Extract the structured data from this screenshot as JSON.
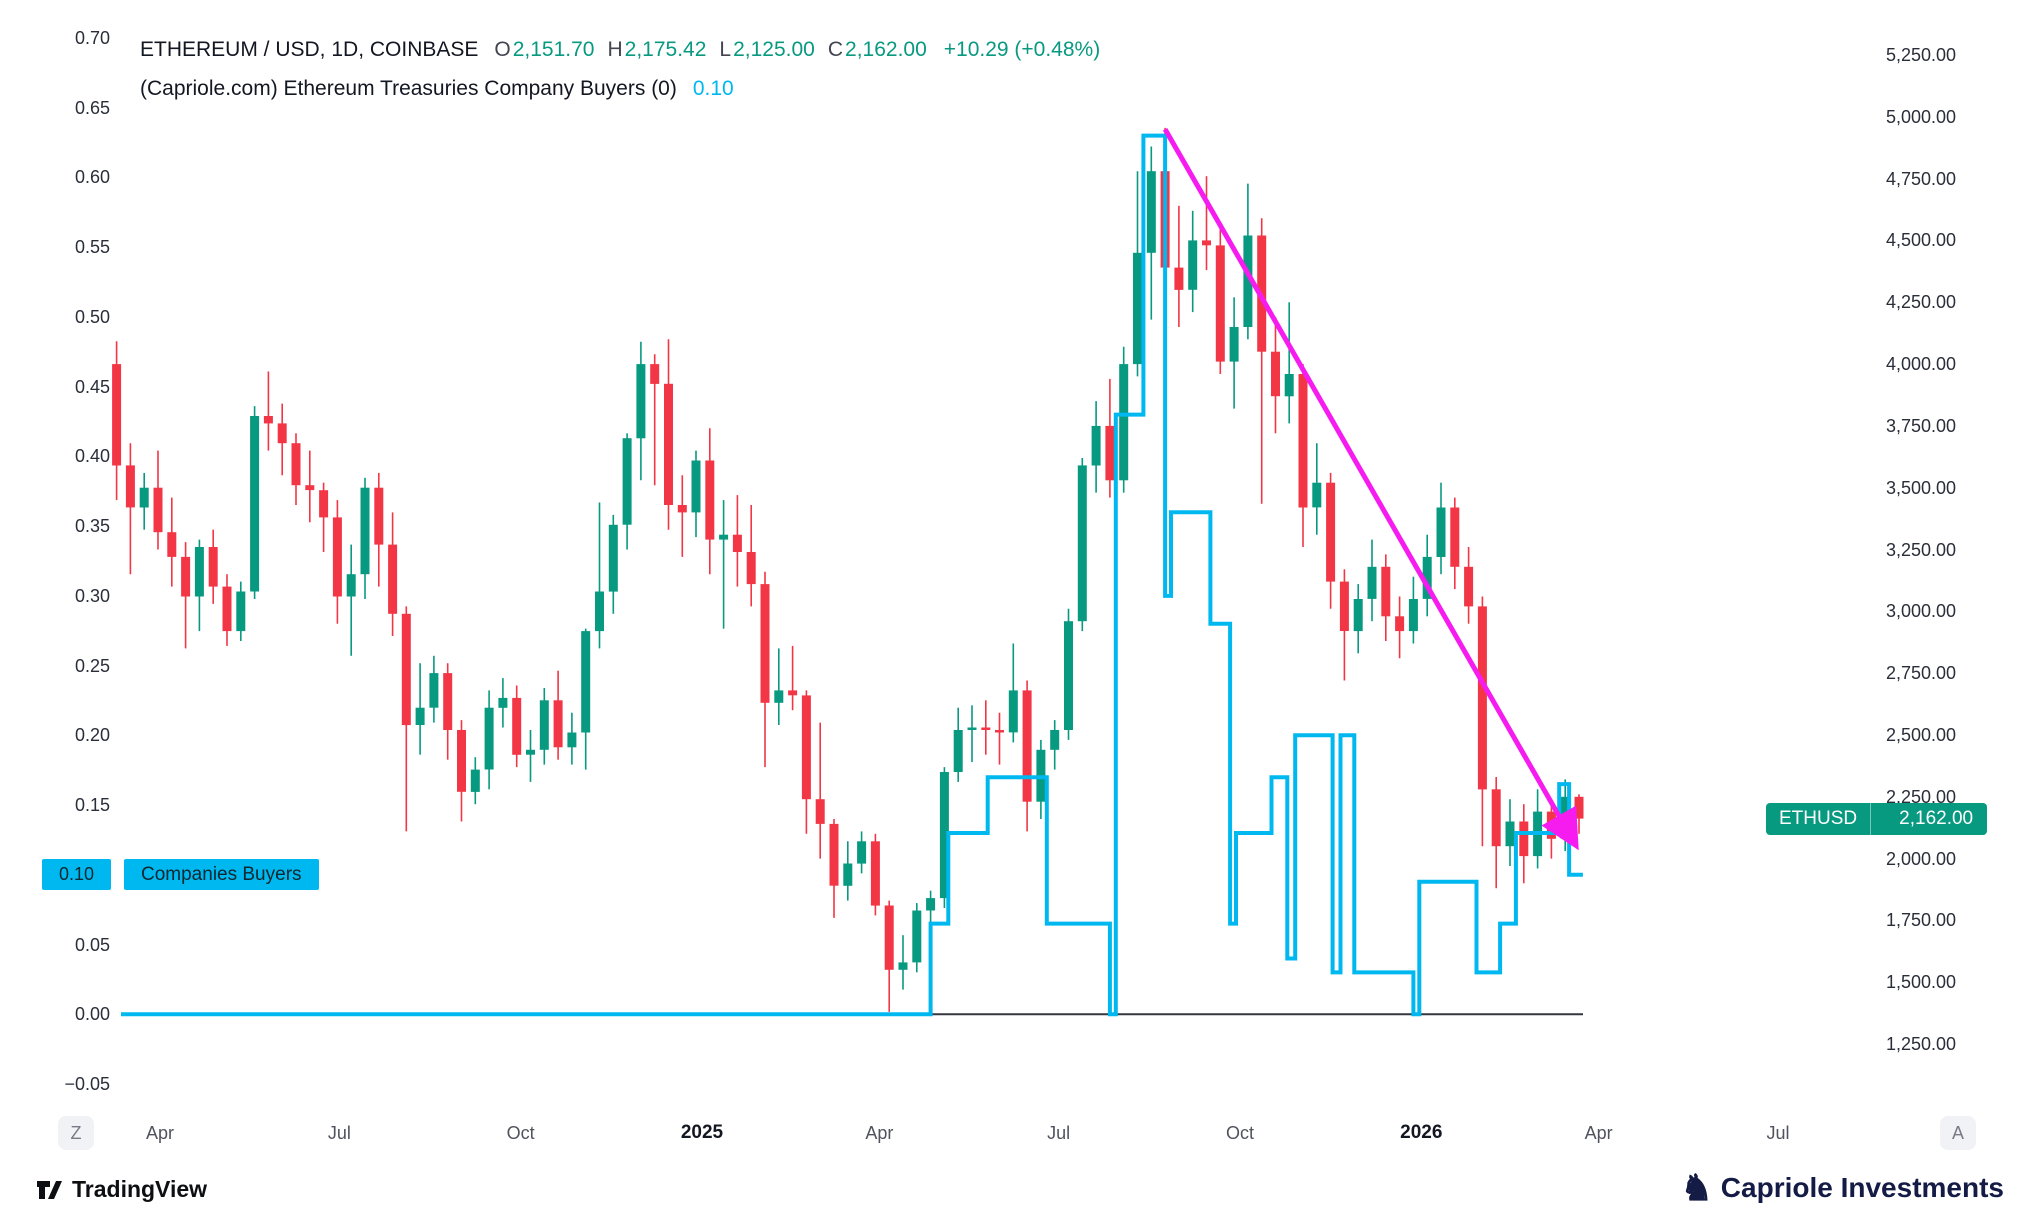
{
  "colors": {
    "up": "#089981",
    "down": "#F23645",
    "indicator": "#00B8F0",
    "trend_arrow": "#F61CF0",
    "price_label_bg": "#089981",
    "zero_line": "#32363E"
  },
  "legend": {
    "line1": {
      "title": "ETHEREUM / USD, 1D, COINBASE",
      "o_label": "O",
      "o_value": "2,151.70",
      "h_label": "H",
      "h_value": "2,175.42",
      "l_label": "L",
      "l_value": "2,125.00",
      "c_label": "C",
      "c_value": "2,162.00",
      "change": "+10.29 (+0.48%)"
    },
    "line2": {
      "title": "(Capriole.com) Ethereum Treasuries Company Buyers (0)",
      "value": "0.10"
    }
  },
  "axes": {
    "left_ticks": [
      "0.70",
      "0.65",
      "0.60",
      "0.55",
      "0.50",
      "0.45",
      "0.40",
      "0.35",
      "0.30",
      "0.25",
      "0.20",
      "0.15",
      "0.10",
      "0.05",
      "0.00",
      "−0.05"
    ],
    "right_ticks": [
      "5,250.00",
      "5,000.00",
      "4,750.00",
      "4,500.00",
      "4,250.00",
      "4,000.00",
      "3,750.00",
      "3,500.00",
      "3,250.00",
      "3,000.00",
      "2,750.00",
      "2,500.00",
      "2,250.00",
      "2,000.00",
      "1,750.00",
      "1,500.00",
      "1,250.00"
    ],
    "bottom_ticks": [
      {
        "label": "Apr",
        "date": "2024-04-01",
        "bold": false
      },
      {
        "label": "Jul",
        "date": "2024-07-01",
        "bold": false
      },
      {
        "label": "Oct",
        "date": "2024-10-01",
        "bold": false
      },
      {
        "label": "2025",
        "date": "2025-01-01",
        "bold": true
      },
      {
        "label": "Apr",
        "date": "2025-04-01",
        "bold": false
      },
      {
        "label": "Jul",
        "date": "2025-07-01",
        "bold": false
      },
      {
        "label": "Oct",
        "date": "2025-10-01",
        "bold": false
      },
      {
        "label": "2026",
        "date": "2026-01-01",
        "bold": true
      },
      {
        "label": "Apr",
        "date": "2026-04-01",
        "bold": false
      },
      {
        "label": "Jul",
        "date": "2026-07-01",
        "bold": false
      }
    ],
    "left_scale_button": "Z",
    "right_scale_button": "A"
  },
  "tags": {
    "indicator_axis_value": "0.10",
    "indicator_name": "Companies Buyers",
    "price_symbol": "ETHUSD",
    "price_value": "2,162.00"
  },
  "footer": {
    "tradingview_label": "TradingView",
    "brand_label": "Capriole Investments"
  },
  "chart_data": {
    "type": "candlestick",
    "title": "ETHEREUM / USD, 1D, COINBASE with Ethereum Treasuries Company Buyers overlay",
    "legend_ohlc": {
      "open": 2151.7,
      "high": 2175.42,
      "low": 2125.0,
      "close": 2162.0,
      "change": 10.29,
      "change_pct": 0.48
    },
    "axes": {
      "left": {
        "min": -0.05,
        "max": 0.7,
        "tick_step": 0.05,
        "series": "Company Buyers"
      },
      "right": {
        "min": 1250,
        "max": 5250,
        "tick_step": 250,
        "series": "ETHUSD"
      },
      "x": {
        "start": "2024-03-10",
        "end": "2026-07-31",
        "tick_dates": [
          "2024-04-01",
          "2024-07-01",
          "2024-10-01",
          "2025-01-01",
          "2025-04-01",
          "2025-07-01",
          "2025-10-01",
          "2026-01-01",
          "2026-04-01",
          "2026-07-01"
        ]
      }
    },
    "series": [
      {
        "name": "ETHUSD",
        "type": "candlestick",
        "axis": "right",
        "start_date": "2024-03-10",
        "interval_days": 7,
        "last_close": 2162.0,
        "candles": [
          [
            4000,
            4092,
            3450,
            3590
          ],
          [
            3590,
            3680,
            3150,
            3420
          ],
          [
            3420,
            3560,
            3330,
            3500
          ],
          [
            3500,
            3650,
            3250,
            3320
          ],
          [
            3320,
            3460,
            3100,
            3220
          ],
          [
            3220,
            3280,
            2850,
            3060
          ],
          [
            3060,
            3290,
            2920,
            3260
          ],
          [
            3260,
            3330,
            3030,
            3100
          ],
          [
            3100,
            3150,
            2860,
            2920
          ],
          [
            2920,
            3120,
            2880,
            3080
          ],
          [
            3080,
            3830,
            3050,
            3790
          ],
          [
            3790,
            3970,
            3650,
            3760
          ],
          [
            3760,
            3840,
            3550,
            3680
          ],
          [
            3680,
            3720,
            3430,
            3510
          ],
          [
            3510,
            3650,
            3360,
            3490
          ],
          [
            3490,
            3520,
            3240,
            3380
          ],
          [
            3380,
            3450,
            2950,
            3060
          ],
          [
            3060,
            3270,
            2820,
            3150
          ],
          [
            3150,
            3540,
            3050,
            3500
          ],
          [
            3500,
            3560,
            3100,
            3270
          ],
          [
            3270,
            3400,
            2900,
            2990
          ],
          [
            2990,
            3020,
            2110,
            2540
          ],
          [
            2540,
            2790,
            2420,
            2610
          ],
          [
            2610,
            2820,
            2550,
            2750
          ],
          [
            2750,
            2790,
            2400,
            2520
          ],
          [
            2520,
            2560,
            2150,
            2270
          ],
          [
            2270,
            2410,
            2220,
            2360
          ],
          [
            2360,
            2680,
            2280,
            2610
          ],
          [
            2610,
            2730,
            2530,
            2650
          ],
          [
            2650,
            2700,
            2370,
            2420
          ],
          [
            2420,
            2520,
            2310,
            2440
          ],
          [
            2440,
            2690,
            2380,
            2640
          ],
          [
            2640,
            2760,
            2400,
            2450
          ],
          [
            2450,
            2590,
            2380,
            2510
          ],
          [
            2510,
            2930,
            2360,
            2920
          ],
          [
            2920,
            3440,
            2850,
            3080
          ],
          [
            3080,
            3390,
            2990,
            3350
          ],
          [
            3350,
            3720,
            3250,
            3700
          ],
          [
            3700,
            4090,
            3530,
            4000
          ],
          [
            4000,
            4040,
            3510,
            3920
          ],
          [
            3920,
            4100,
            3330,
            3430
          ],
          [
            3430,
            3550,
            3220,
            3400
          ],
          [
            3400,
            3650,
            3300,
            3610
          ],
          [
            3610,
            3740,
            3150,
            3290
          ],
          [
            3290,
            3450,
            2930,
            3310
          ],
          [
            3310,
            3470,
            3100,
            3240
          ],
          [
            3240,
            3430,
            3020,
            3110
          ],
          [
            3110,
            3160,
            2370,
            2630
          ],
          [
            2630,
            2850,
            2540,
            2680
          ],
          [
            2680,
            2860,
            2600,
            2660
          ],
          [
            2660,
            2680,
            2100,
            2240
          ],
          [
            2240,
            2550,
            2000,
            2140
          ],
          [
            2140,
            2160,
            1760,
            1890
          ],
          [
            1890,
            2070,
            1830,
            1980
          ],
          [
            1980,
            2110,
            1940,
            2070
          ],
          [
            2070,
            2100,
            1770,
            1810
          ],
          [
            1810,
            1830,
            1380,
            1550
          ],
          [
            1550,
            1690,
            1470,
            1580
          ],
          [
            1580,
            1820,
            1540,
            1790
          ],
          [
            1790,
            1870,
            1720,
            1840
          ],
          [
            1840,
            2370,
            1800,
            2350
          ],
          [
            2350,
            2610,
            2310,
            2520
          ],
          [
            2520,
            2620,
            2390,
            2530
          ],
          [
            2530,
            2640,
            2420,
            2520
          ],
          [
            2520,
            2590,
            2380,
            2510
          ],
          [
            2510,
            2870,
            2470,
            2680
          ],
          [
            2680,
            2720,
            2110,
            2230
          ],
          [
            2230,
            2480,
            2160,
            2440
          ],
          [
            2440,
            2560,
            2360,
            2520
          ],
          [
            2520,
            3010,
            2480,
            2960
          ],
          [
            2960,
            3620,
            2920,
            3590
          ],
          [
            3590,
            3850,
            3480,
            3750
          ],
          [
            3750,
            3940,
            3460,
            3530
          ],
          [
            3530,
            4070,
            3480,
            4000
          ],
          [
            4000,
            4780,
            3950,
            4450
          ],
          [
            4450,
            4880,
            4180,
            4780
          ],
          [
            4780,
            4955,
            4220,
            4390
          ],
          [
            4390,
            4640,
            4150,
            4300
          ],
          [
            4300,
            4620,
            4210,
            4500
          ],
          [
            4500,
            4760,
            4380,
            4480
          ],
          [
            4480,
            4560,
            3960,
            4010
          ],
          [
            4010,
            4270,
            3820,
            4150
          ],
          [
            4150,
            4730,
            4100,
            4520
          ],
          [
            4520,
            4590,
            3435,
            4050
          ],
          [
            4050,
            4190,
            3720,
            3870
          ],
          [
            3870,
            4250,
            3760,
            3960
          ],
          [
            3960,
            4000,
            3260,
            3420
          ],
          [
            3420,
            3680,
            3310,
            3520
          ],
          [
            3520,
            3560,
            3010,
            3120
          ],
          [
            3120,
            3170,
            2720,
            2920
          ],
          [
            2920,
            3110,
            2830,
            3050
          ],
          [
            3050,
            3290,
            2960,
            3180
          ],
          [
            3180,
            3230,
            2880,
            2980
          ],
          [
            2980,
            3060,
            2810,
            2920
          ],
          [
            2920,
            3140,
            2870,
            3050
          ],
          [
            3050,
            3310,
            2980,
            3220
          ],
          [
            3220,
            3520,
            3150,
            3420
          ],
          [
            3420,
            3460,
            3090,
            3180
          ],
          [
            3180,
            3260,
            2950,
            3020
          ],
          [
            3020,
            3060,
            2050,
            2280
          ],
          [
            2280,
            2330,
            1880,
            2050
          ],
          [
            2050,
            2240,
            1970,
            2150
          ],
          [
            2150,
            2220,
            1900,
            2010
          ],
          [
            2010,
            2280,
            1960,
            2190
          ],
          [
            2190,
            2230,
            2000,
            2080
          ],
          [
            2080,
            2320,
            2030,
            2250
          ],
          [
            2250,
            2260,
            2100,
            2162
          ]
        ]
      },
      {
        "name": "Ethereum Treasuries Company Buyers",
        "type": "step_line",
        "axis": "left",
        "color": "#00B8F0",
        "current_value": 0.1,
        "points": [
          [
            "2024-03-10",
            0
          ],
          [
            "2025-04-27",
            0.065
          ],
          [
            "2025-05-06",
            0.13
          ],
          [
            "2025-05-26",
            0.17
          ],
          [
            "2025-06-25",
            0.065
          ],
          [
            "2025-07-27",
            0
          ],
          [
            "2025-07-30",
            0.43
          ],
          [
            "2025-08-13",
            0.63
          ],
          [
            "2025-08-24",
            0.3
          ],
          [
            "2025-08-27",
            0.36
          ],
          [
            "2025-09-16",
            0.28
          ],
          [
            "2025-09-26",
            0.065
          ],
          [
            "2025-09-29",
            0.13
          ],
          [
            "2025-10-17",
            0.17
          ],
          [
            "2025-10-25",
            0.04
          ],
          [
            "2025-10-29",
            0.2
          ],
          [
            "2025-11-17",
            0.03
          ],
          [
            "2025-11-21",
            0.2
          ],
          [
            "2025-11-28",
            0.03
          ],
          [
            "2025-12-28",
            0
          ],
          [
            "2025-12-31",
            0.095
          ],
          [
            "2026-01-29",
            0.03
          ],
          [
            "2026-02-10",
            0.065
          ],
          [
            "2026-02-18",
            0.13
          ],
          [
            "2026-03-12",
            0.165
          ],
          [
            "2026-03-17",
            0.1
          ],
          [
            "2026-03-24",
            0.1
          ]
        ]
      }
    ],
    "annotations": [
      {
        "type": "arrow",
        "color": "#F61CF0",
        "from": {
          "date": "2025-08-24",
          "price": 4950
        },
        "to": {
          "date": "2026-03-20",
          "price": 2060
        }
      }
    ]
  }
}
